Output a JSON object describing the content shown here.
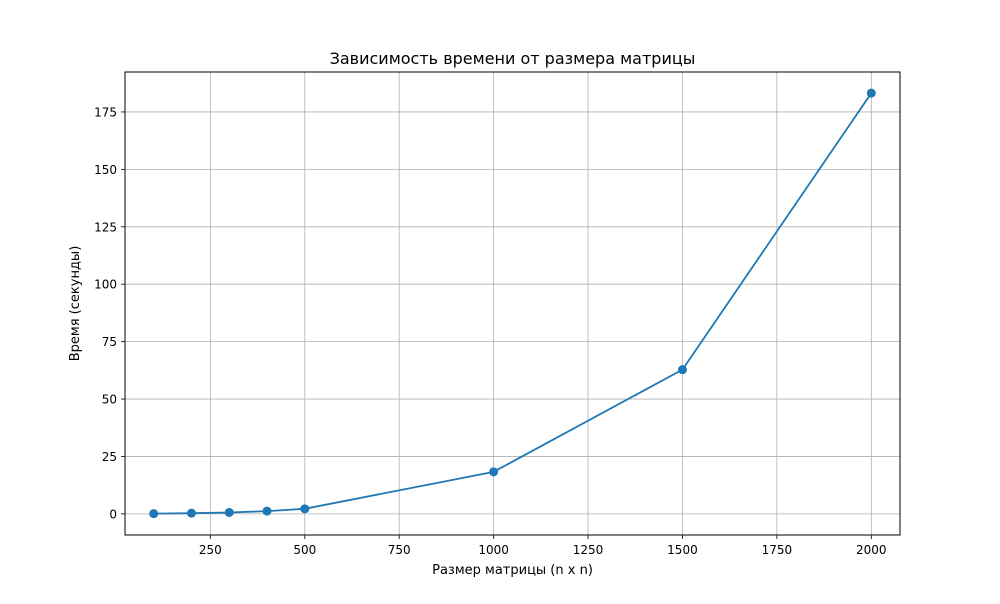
{
  "chart_data": {
    "type": "line",
    "title": "Зависимость времени от размера матрицы",
    "xlabel": "Размер матрицы (n x n)",
    "ylabel": "Время (секунды)",
    "x": [
      100,
      200,
      300,
      400,
      500,
      1000,
      1500,
      2000
    ],
    "series": [
      {
        "values": [
          0.1,
          0.3,
          0.6,
          1.2,
          2.2,
          18.3,
          62.8,
          183.2
        ]
      }
    ],
    "xlim": [
      24,
      2076
    ],
    "ylim": [
      -9.2,
      192.4
    ],
    "xticks": [
      250,
      500,
      750,
      1000,
      1250,
      1500,
      1750,
      2000
    ],
    "yticks": [
      0,
      25,
      50,
      75,
      100,
      125,
      150,
      175
    ],
    "grid": true,
    "legend": "none",
    "colors": {
      "line": "#1f77b4",
      "grid": "#b0b0b0",
      "axes": "#000000"
    }
  }
}
